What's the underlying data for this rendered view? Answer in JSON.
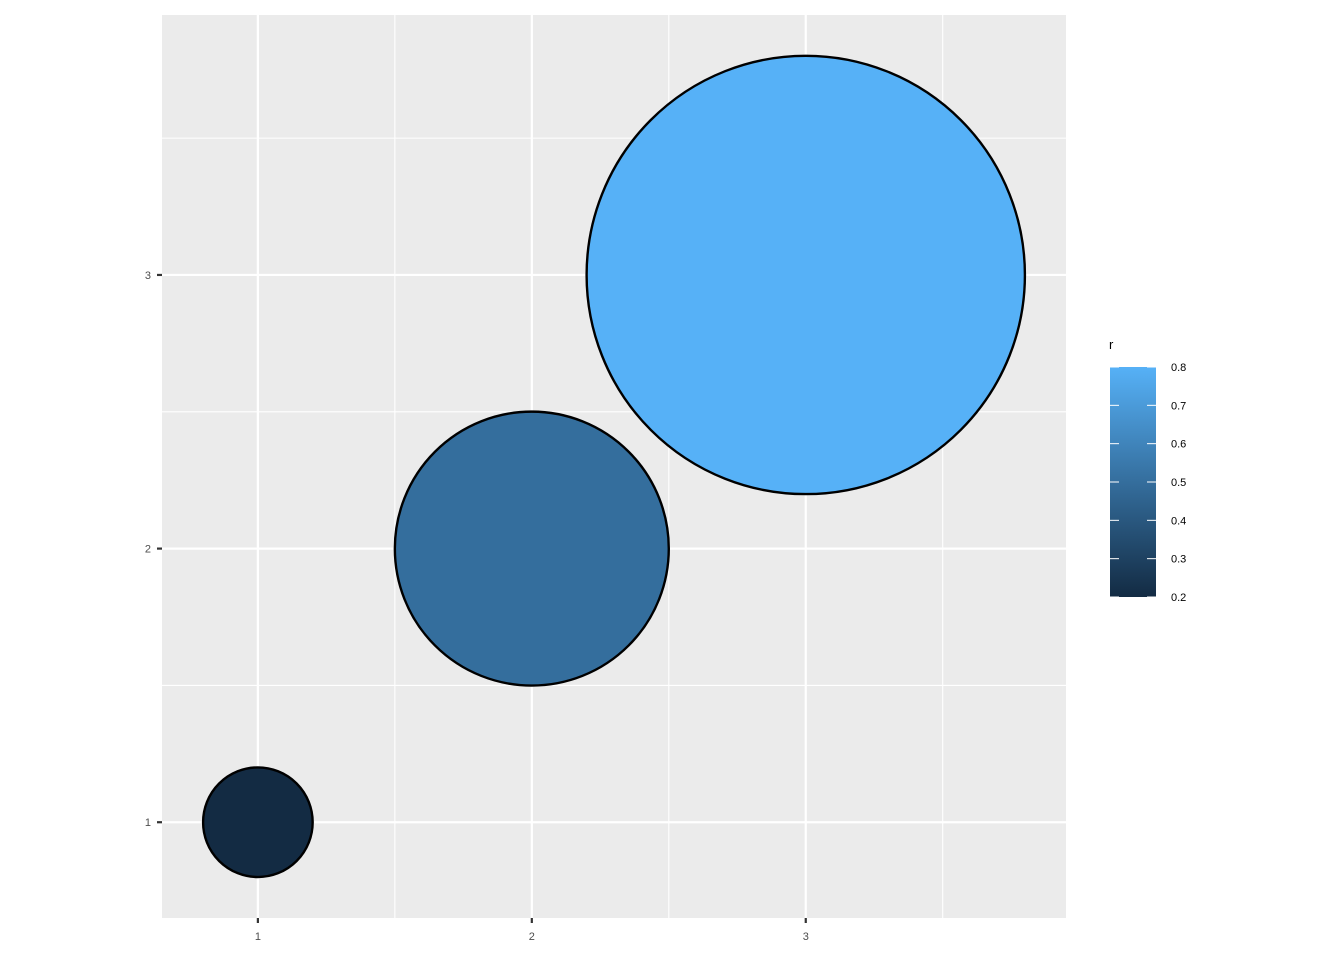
{
  "chart_data": {
    "type": "scatter",
    "title": "",
    "xlabel": "",
    "ylabel": "",
    "x_ticks": [
      "1",
      "2",
      "3"
    ],
    "y_ticks": [
      "1",
      "2",
      "3"
    ],
    "xlim": [
      0.65,
      3.95
    ],
    "ylim": [
      0.65,
      3.95
    ],
    "grid": true,
    "points": [
      {
        "x": 1,
        "y": 1,
        "r": 0.2
      },
      {
        "x": 2,
        "y": 2,
        "r": 0.5
      },
      {
        "x": 3,
        "y": 3,
        "r": 0.8
      }
    ],
    "legend": {
      "title": "r",
      "placement": "right",
      "ticks": [
        "0.2",
        "0.3",
        "0.4",
        "0.5",
        "0.6",
        "0.7",
        "0.8"
      ],
      "range": [
        0.2,
        0.8
      ],
      "color_low": "#132B43",
      "color_high": "#56B1F7"
    },
    "colors": {
      "panel_background": "#EBEBEB",
      "grid_line": "#FFFFFF",
      "point_outline": "#000000"
    }
  }
}
